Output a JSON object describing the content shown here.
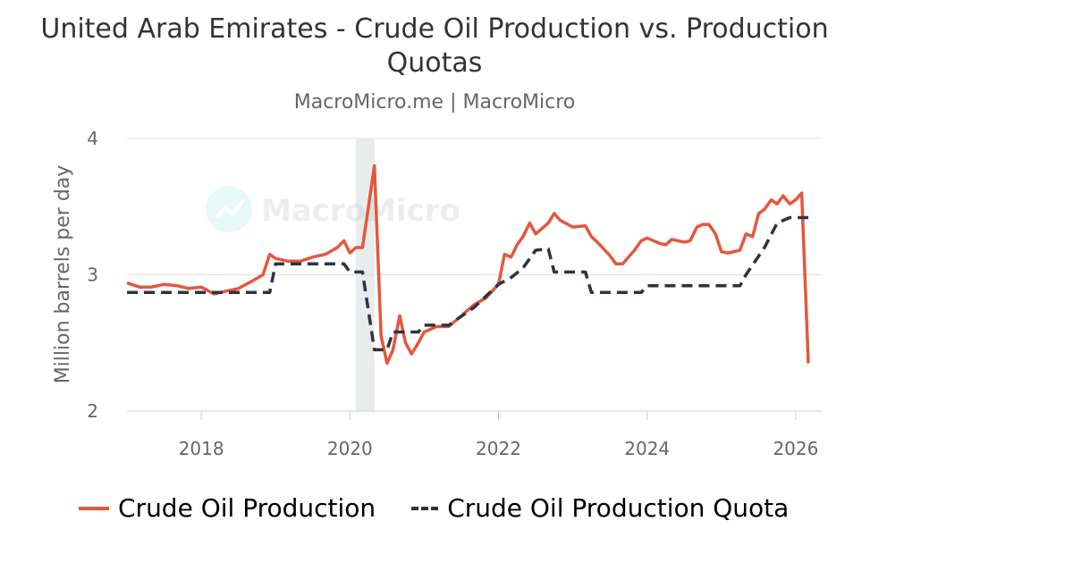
{
  "chart_data": {
    "type": "line",
    "title": "United Arab Emirates - Crude Oil Production vs. Production Quotas",
    "subtitle": "MacroMicro.me | MacroMicro",
    "watermark": "MacroMicro",
    "ylabel": "Million barrels per day",
    "xlabel": "",
    "xlim": [
      2017.0,
      2026.35
    ],
    "ylim": [
      2,
      4
    ],
    "x_ticks": [
      2018,
      2020,
      2022,
      2024,
      2026
    ],
    "y_ticks": [
      2,
      3,
      4
    ],
    "grid": "horizontal",
    "legend_position": "bottom",
    "shaded_period": [
      2020.08,
      2020.33
    ],
    "colors": {
      "production": "#e4573d",
      "quota": "#2f3240",
      "shade": "#e9ecec",
      "grid": "#e0e0e0"
    },
    "series": [
      {
        "name": "Crude Oil Production",
        "style": "solid",
        "points": [
          [
            2017.0,
            2.94
          ],
          [
            2017.17,
            2.91
          ],
          [
            2017.33,
            2.91
          ],
          [
            2017.5,
            2.93
          ],
          [
            2017.67,
            2.92
          ],
          [
            2017.83,
            2.9
          ],
          [
            2018.0,
            2.91
          ],
          [
            2018.17,
            2.86
          ],
          [
            2018.33,
            2.88
          ],
          [
            2018.5,
            2.9
          ],
          [
            2018.67,
            2.95
          ],
          [
            2018.83,
            3.0
          ],
          [
            2018.92,
            3.15
          ],
          [
            2019.0,
            3.12
          ],
          [
            2019.17,
            3.1
          ],
          [
            2019.33,
            3.1
          ],
          [
            2019.5,
            3.13
          ],
          [
            2019.67,
            3.15
          ],
          [
            2019.83,
            3.2
          ],
          [
            2019.92,
            3.25
          ],
          [
            2020.0,
            3.16
          ],
          [
            2020.08,
            3.2
          ],
          [
            2020.17,
            3.2
          ],
          [
            2020.25,
            3.5
          ],
          [
            2020.33,
            3.8
          ],
          [
            2020.42,
            2.55
          ],
          [
            2020.5,
            2.35
          ],
          [
            2020.58,
            2.45
          ],
          [
            2020.67,
            2.7
          ],
          [
            2020.75,
            2.5
          ],
          [
            2020.83,
            2.42
          ],
          [
            2020.92,
            2.5
          ],
          [
            2021.0,
            2.58
          ],
          [
            2021.17,
            2.62
          ],
          [
            2021.33,
            2.62
          ],
          [
            2021.5,
            2.7
          ],
          [
            2021.67,
            2.78
          ],
          [
            2021.83,
            2.83
          ],
          [
            2022.0,
            2.93
          ],
          [
            2022.08,
            3.15
          ],
          [
            2022.17,
            3.13
          ],
          [
            2022.25,
            3.22
          ],
          [
            2022.33,
            3.28
          ],
          [
            2022.42,
            3.38
          ],
          [
            2022.5,
            3.3
          ],
          [
            2022.67,
            3.38
          ],
          [
            2022.75,
            3.45
          ],
          [
            2022.83,
            3.4
          ],
          [
            2023.0,
            3.35
          ],
          [
            2023.17,
            3.36
          ],
          [
            2023.25,
            3.28
          ],
          [
            2023.33,
            3.24
          ],
          [
            2023.5,
            3.14
          ],
          [
            2023.58,
            3.08
          ],
          [
            2023.67,
            3.08
          ],
          [
            2023.83,
            3.18
          ],
          [
            2023.92,
            3.25
          ],
          [
            2024.0,
            3.27
          ],
          [
            2024.17,
            3.23
          ],
          [
            2024.25,
            3.22
          ],
          [
            2024.33,
            3.26
          ],
          [
            2024.5,
            3.24
          ],
          [
            2024.58,
            3.25
          ],
          [
            2024.67,
            3.35
          ],
          [
            2024.75,
            3.37
          ],
          [
            2024.83,
            3.37
          ],
          [
            2024.92,
            3.3
          ],
          [
            2025.0,
            3.17
          ],
          [
            2025.08,
            3.16
          ],
          [
            2025.17,
            3.17
          ],
          [
            2025.25,
            3.18
          ],
          [
            2025.33,
            3.3
          ],
          [
            2025.42,
            3.28
          ],
          [
            2025.5,
            3.45
          ],
          [
            2025.58,
            3.48
          ],
          [
            2025.67,
            3.55
          ],
          [
            2025.75,
            3.52
          ],
          [
            2025.83,
            3.58
          ],
          [
            2025.92,
            3.52
          ],
          [
            2026.0,
            3.55
          ],
          [
            2026.08,
            3.6
          ],
          [
            2026.17,
            2.35
          ]
        ]
      },
      {
        "name": "Crude Oil Production Quota",
        "style": "dashed",
        "points": [
          [
            2017.0,
            2.87
          ],
          [
            2018.92,
            2.87
          ],
          [
            2019.0,
            3.08
          ],
          [
            2019.92,
            3.08
          ],
          [
            2020.0,
            3.02
          ],
          [
            2020.17,
            3.02
          ],
          [
            2020.33,
            2.45
          ],
          [
            2020.5,
            2.45
          ],
          [
            2020.58,
            2.58
          ],
          [
            2020.92,
            2.58
          ],
          [
            2021.0,
            2.63
          ],
          [
            2021.33,
            2.63
          ],
          [
            2021.67,
            2.76
          ],
          [
            2022.0,
            2.93
          ],
          [
            2022.17,
            2.98
          ],
          [
            2022.33,
            3.05
          ],
          [
            2022.5,
            3.18
          ],
          [
            2022.67,
            3.19
          ],
          [
            2022.75,
            3.02
          ],
          [
            2023.17,
            3.02
          ],
          [
            2023.25,
            2.87
          ],
          [
            2023.92,
            2.87
          ],
          [
            2024.0,
            2.92
          ],
          [
            2025.25,
            2.92
          ],
          [
            2025.33,
            3.0
          ],
          [
            2025.58,
            3.2
          ],
          [
            2025.75,
            3.38
          ],
          [
            2025.92,
            3.42
          ],
          [
            2026.17,
            3.42
          ],
          [
            2026.25,
            3.42
          ]
        ]
      }
    ]
  }
}
